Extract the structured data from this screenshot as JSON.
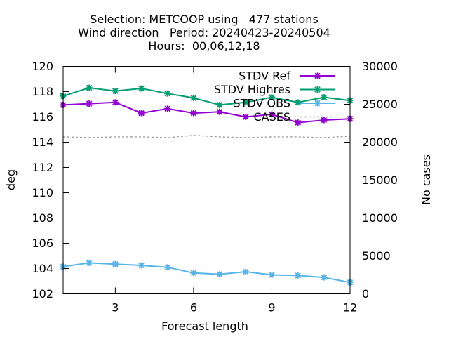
{
  "title": {
    "line1": "Selection: METCOOP using   477 stations",
    "line2": "Wind direction   Period: 20240423-20240504",
    "line3": "Hours:  00,06,12,18"
  },
  "chart_data": {
    "type": "line",
    "xlabel": "Forecast length",
    "ylabel": "deg",
    "y2label": "No cases",
    "xlim": [
      1,
      12
    ],
    "ylim": [
      102,
      120
    ],
    "y2lim": [
      0,
      30000
    ],
    "xticks": [
      3,
      6,
      9,
      12
    ],
    "yticks": [
      102,
      104,
      106,
      108,
      110,
      112,
      114,
      116,
      118,
      120
    ],
    "y2ticks": [
      0,
      5000,
      10000,
      15000,
      20000,
      25000,
      30000
    ],
    "grid": false,
    "legend_position": "top-right",
    "x": [
      1,
      2,
      3,
      4,
      5,
      6,
      7,
      8,
      9,
      10,
      11,
      12
    ],
    "series": [
      {
        "name": "STDV Ref",
        "color": "#9400d3",
        "axis": "y1",
        "style": "line-marker",
        "values": [
          116.95,
          117.05,
          117.15,
          116.3,
          116.65,
          116.3,
          116.4,
          116.0,
          116.2,
          115.55,
          115.75,
          115.85
        ]
      },
      {
        "name": "STDV Highres",
        "color": "#009e73",
        "axis": "y1",
        "style": "line-marker",
        "values": [
          117.65,
          118.3,
          118.05,
          118.25,
          117.85,
          117.5,
          116.95,
          117.15,
          117.55,
          117.15,
          117.55,
          117.3
        ]
      },
      {
        "name": "STDV OBS",
        "color": "#56b4e9",
        "axis": "y1",
        "style": "line-marker",
        "values": [
          104.15,
          104.45,
          104.35,
          104.25,
          104.1,
          103.65,
          103.55,
          103.75,
          103.5,
          103.45,
          103.3,
          102.9
        ]
      },
      {
        "name": "CASES",
        "color": "#a0a0a0",
        "axis": "y2",
        "style": "dashed",
        "values": [
          20700,
          20600,
          20700,
          20700,
          20600,
          20900,
          20700,
          20600,
          20700,
          20700,
          20600,
          20800
        ]
      }
    ]
  }
}
